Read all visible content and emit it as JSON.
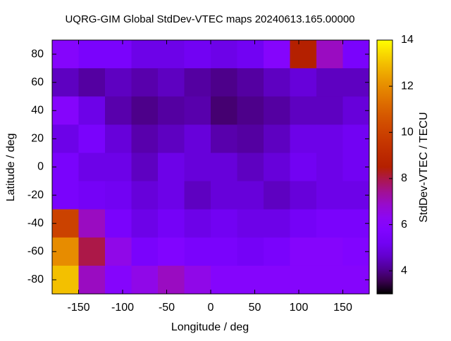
{
  "chart_data": {
    "type": "heatmap",
    "title": "UQRG-GIM Global StdDev-VTEC maps 20240613.165.00000",
    "x_label": "Longitude / deg",
    "y_label": "Latitude / deg",
    "colorbar_label": "StdDev-VTEC / TECU",
    "x": [
      -165,
      -135,
      -105,
      -75,
      -45,
      -15,
      15,
      45,
      75,
      105,
      135,
      165
    ],
    "y": [
      80,
      60,
      40,
      20,
      0,
      -20,
      -40,
      -60,
      -80
    ],
    "values": [
      [
        6.0,
        5.5,
        5.5,
        5.0,
        5.0,
        5.2,
        5.0,
        5.2,
        6.0,
        8.5,
        7.0,
        5.5
      ],
      [
        4.5,
        4.2,
        4.5,
        4.3,
        4.5,
        4.2,
        4.0,
        4.2,
        4.5,
        4.8,
        4.5,
        4.5
      ],
      [
        6.0,
        5.0,
        4.3,
        4.0,
        4.2,
        4.3,
        3.8,
        4.0,
        4.2,
        4.5,
        4.5,
        4.8
      ],
      [
        5.0,
        5.5,
        4.8,
        4.3,
        4.5,
        4.8,
        4.3,
        4.2,
        4.5,
        5.0,
        5.0,
        5.2
      ],
      [
        5.5,
        5.0,
        5.0,
        4.5,
        5.0,
        4.8,
        4.8,
        4.5,
        4.8,
        5.2,
        5.0,
        5.2
      ],
      [
        5.5,
        5.3,
        5.2,
        4.8,
        5.0,
        4.5,
        4.8,
        4.8,
        4.5,
        4.8,
        5.0,
        5.0
      ],
      [
        10.0,
        7.0,
        5.5,
        5.0,
        5.3,
        5.0,
        5.2,
        5.0,
        5.0,
        5.3,
        5.5,
        5.5
      ],
      [
        12.0,
        8.0,
        6.5,
        5.5,
        5.8,
        5.5,
        5.5,
        5.3,
        5.5,
        6.0,
        6.0,
        5.8
      ],
      [
        13.0,
        7.0,
        6.0,
        6.5,
        7.0,
        6.5,
        6.0,
        6.0,
        6.0,
        6.0,
        6.0,
        6.0
      ]
    ],
    "xlim": [
      -180,
      180
    ],
    "ylim": [
      -90,
      90
    ],
    "zlim": [
      3,
      14
    ],
    "xticks": [
      -150,
      -100,
      -50,
      0,
      50,
      100,
      150
    ],
    "yticks": [
      -80,
      -60,
      -40,
      -20,
      0,
      20,
      40,
      60,
      80
    ],
    "zticks": [
      4,
      6,
      8,
      10,
      12,
      14
    ],
    "colormap": "gnuplot-7-5-15"
  }
}
